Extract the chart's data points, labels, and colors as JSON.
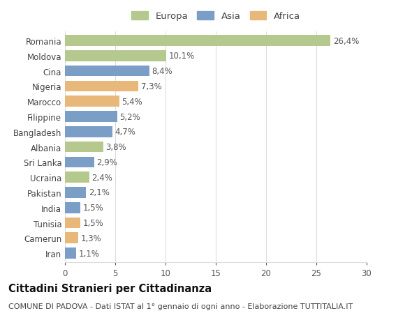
{
  "countries": [
    "Romania",
    "Moldova",
    "Cina",
    "Nigeria",
    "Marocco",
    "Filippine",
    "Bangladesh",
    "Albania",
    "Sri Lanka",
    "Ucraina",
    "Pakistan",
    "India",
    "Tunisia",
    "Camerun",
    "Iran"
  ],
  "values": [
    26.4,
    10.1,
    8.4,
    7.3,
    5.4,
    5.2,
    4.7,
    3.8,
    2.9,
    2.4,
    2.1,
    1.5,
    1.5,
    1.3,
    1.1
  ],
  "labels": [
    "26,4%",
    "10,1%",
    "8,4%",
    "7,3%",
    "5,4%",
    "5,2%",
    "4,7%",
    "3,8%",
    "2,9%",
    "2,4%",
    "2,1%",
    "1,5%",
    "1,5%",
    "1,3%",
    "1,1%"
  ],
  "continents": [
    "Europa",
    "Europa",
    "Asia",
    "Africa",
    "Africa",
    "Asia",
    "Asia",
    "Europa",
    "Asia",
    "Europa",
    "Asia",
    "Asia",
    "Africa",
    "Africa",
    "Asia"
  ],
  "colors": {
    "Europa": "#b5c98e",
    "Asia": "#7b9ec7",
    "Africa": "#e8b87a"
  },
  "xlim": [
    0,
    30
  ],
  "xticks": [
    0,
    5,
    10,
    15,
    20,
    25,
    30
  ],
  "title": "Cittadini Stranieri per Cittadinanza",
  "subtitle": "COMUNE DI PADOVA - Dati ISTAT al 1° gennaio di ogni anno - Elaborazione TUTTITALIA.IT",
  "background_color": "#ffffff",
  "grid_color": "#dddddd",
  "bar_height": 0.72,
  "label_fontsize": 8.5,
  "tick_fontsize": 8.5,
  "title_fontsize": 10.5,
  "subtitle_fontsize": 8.0,
  "legend_fontsize": 9.5
}
